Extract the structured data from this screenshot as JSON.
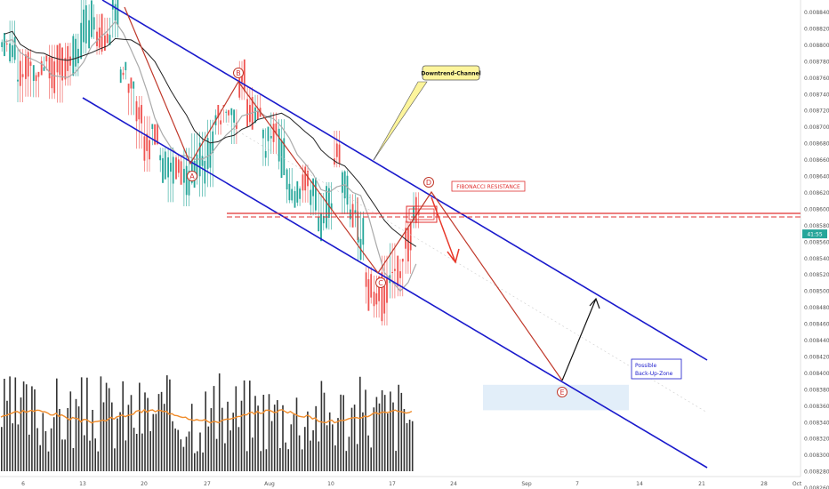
{
  "chart_data": {
    "type": "candlestick",
    "y_axis": {
      "ylim": [
        0.00823,
        0.00885
      ],
      "ticks": [
        "0.008840",
        "0.008820",
        "0.008800",
        "0.008780",
        "0.008760",
        "0.008740",
        "0.008720",
        "0.008700",
        "0.008680",
        "0.008660",
        "0.008640",
        "0.008620",
        "0.008600",
        "0.008580",
        "0.008560",
        "0.008540",
        "0.008520",
        "0.008500",
        "0.008480",
        "0.008460",
        "0.008440",
        "0.008420",
        "0.008400",
        "0.008380",
        "0.008360",
        "0.008340",
        "0.008320",
        "0.008300",
        "0.008280",
        "0.008260",
        "0.008240"
      ]
    },
    "x_axis": {
      "ticks": [
        "6",
        "13",
        "20",
        "27",
        "Aug",
        "10",
        "17",
        "24",
        "Sep",
        "7",
        "14",
        "21",
        "28",
        "Oct"
      ]
    },
    "current_price_label": "41:55",
    "wave_points": [
      {
        "label": "A",
        "date_index": 22,
        "price": 0.00864
      },
      {
        "label": "B",
        "date_index": 30,
        "price": 0.00875
      },
      {
        "label": "C",
        "date_index": 48,
        "price": 0.008495
      },
      {
        "label": "D",
        "date_index": 54,
        "price": 0.008605
      },
      {
        "label": "E",
        "date_index": 72,
        "price": 0.008348
      }
    ],
    "annotations": {
      "channel_label": "Downtrend-Channel",
      "fib_label": "FIBONACCI RESISTANCE",
      "zone_label_1": "Possible",
      "zone_label_2": "Back-Up-Zone"
    },
    "levels": {
      "fibonacci_resistance": 0.008595
    },
    "colors": {
      "channel": "#1a1acc",
      "wave": "#c0392b",
      "fib": "#e03030",
      "zone": "#dbeaf7",
      "volume": "#333333",
      "volume_ma": "#f08c2b",
      "ma_long": "#222222",
      "ma_short": "#aaaaaa",
      "up_candle": "#26a69a",
      "down_candle": "#ef5350",
      "label_box": "#fdf59c",
      "price_tag": "#26a69a"
    }
  }
}
